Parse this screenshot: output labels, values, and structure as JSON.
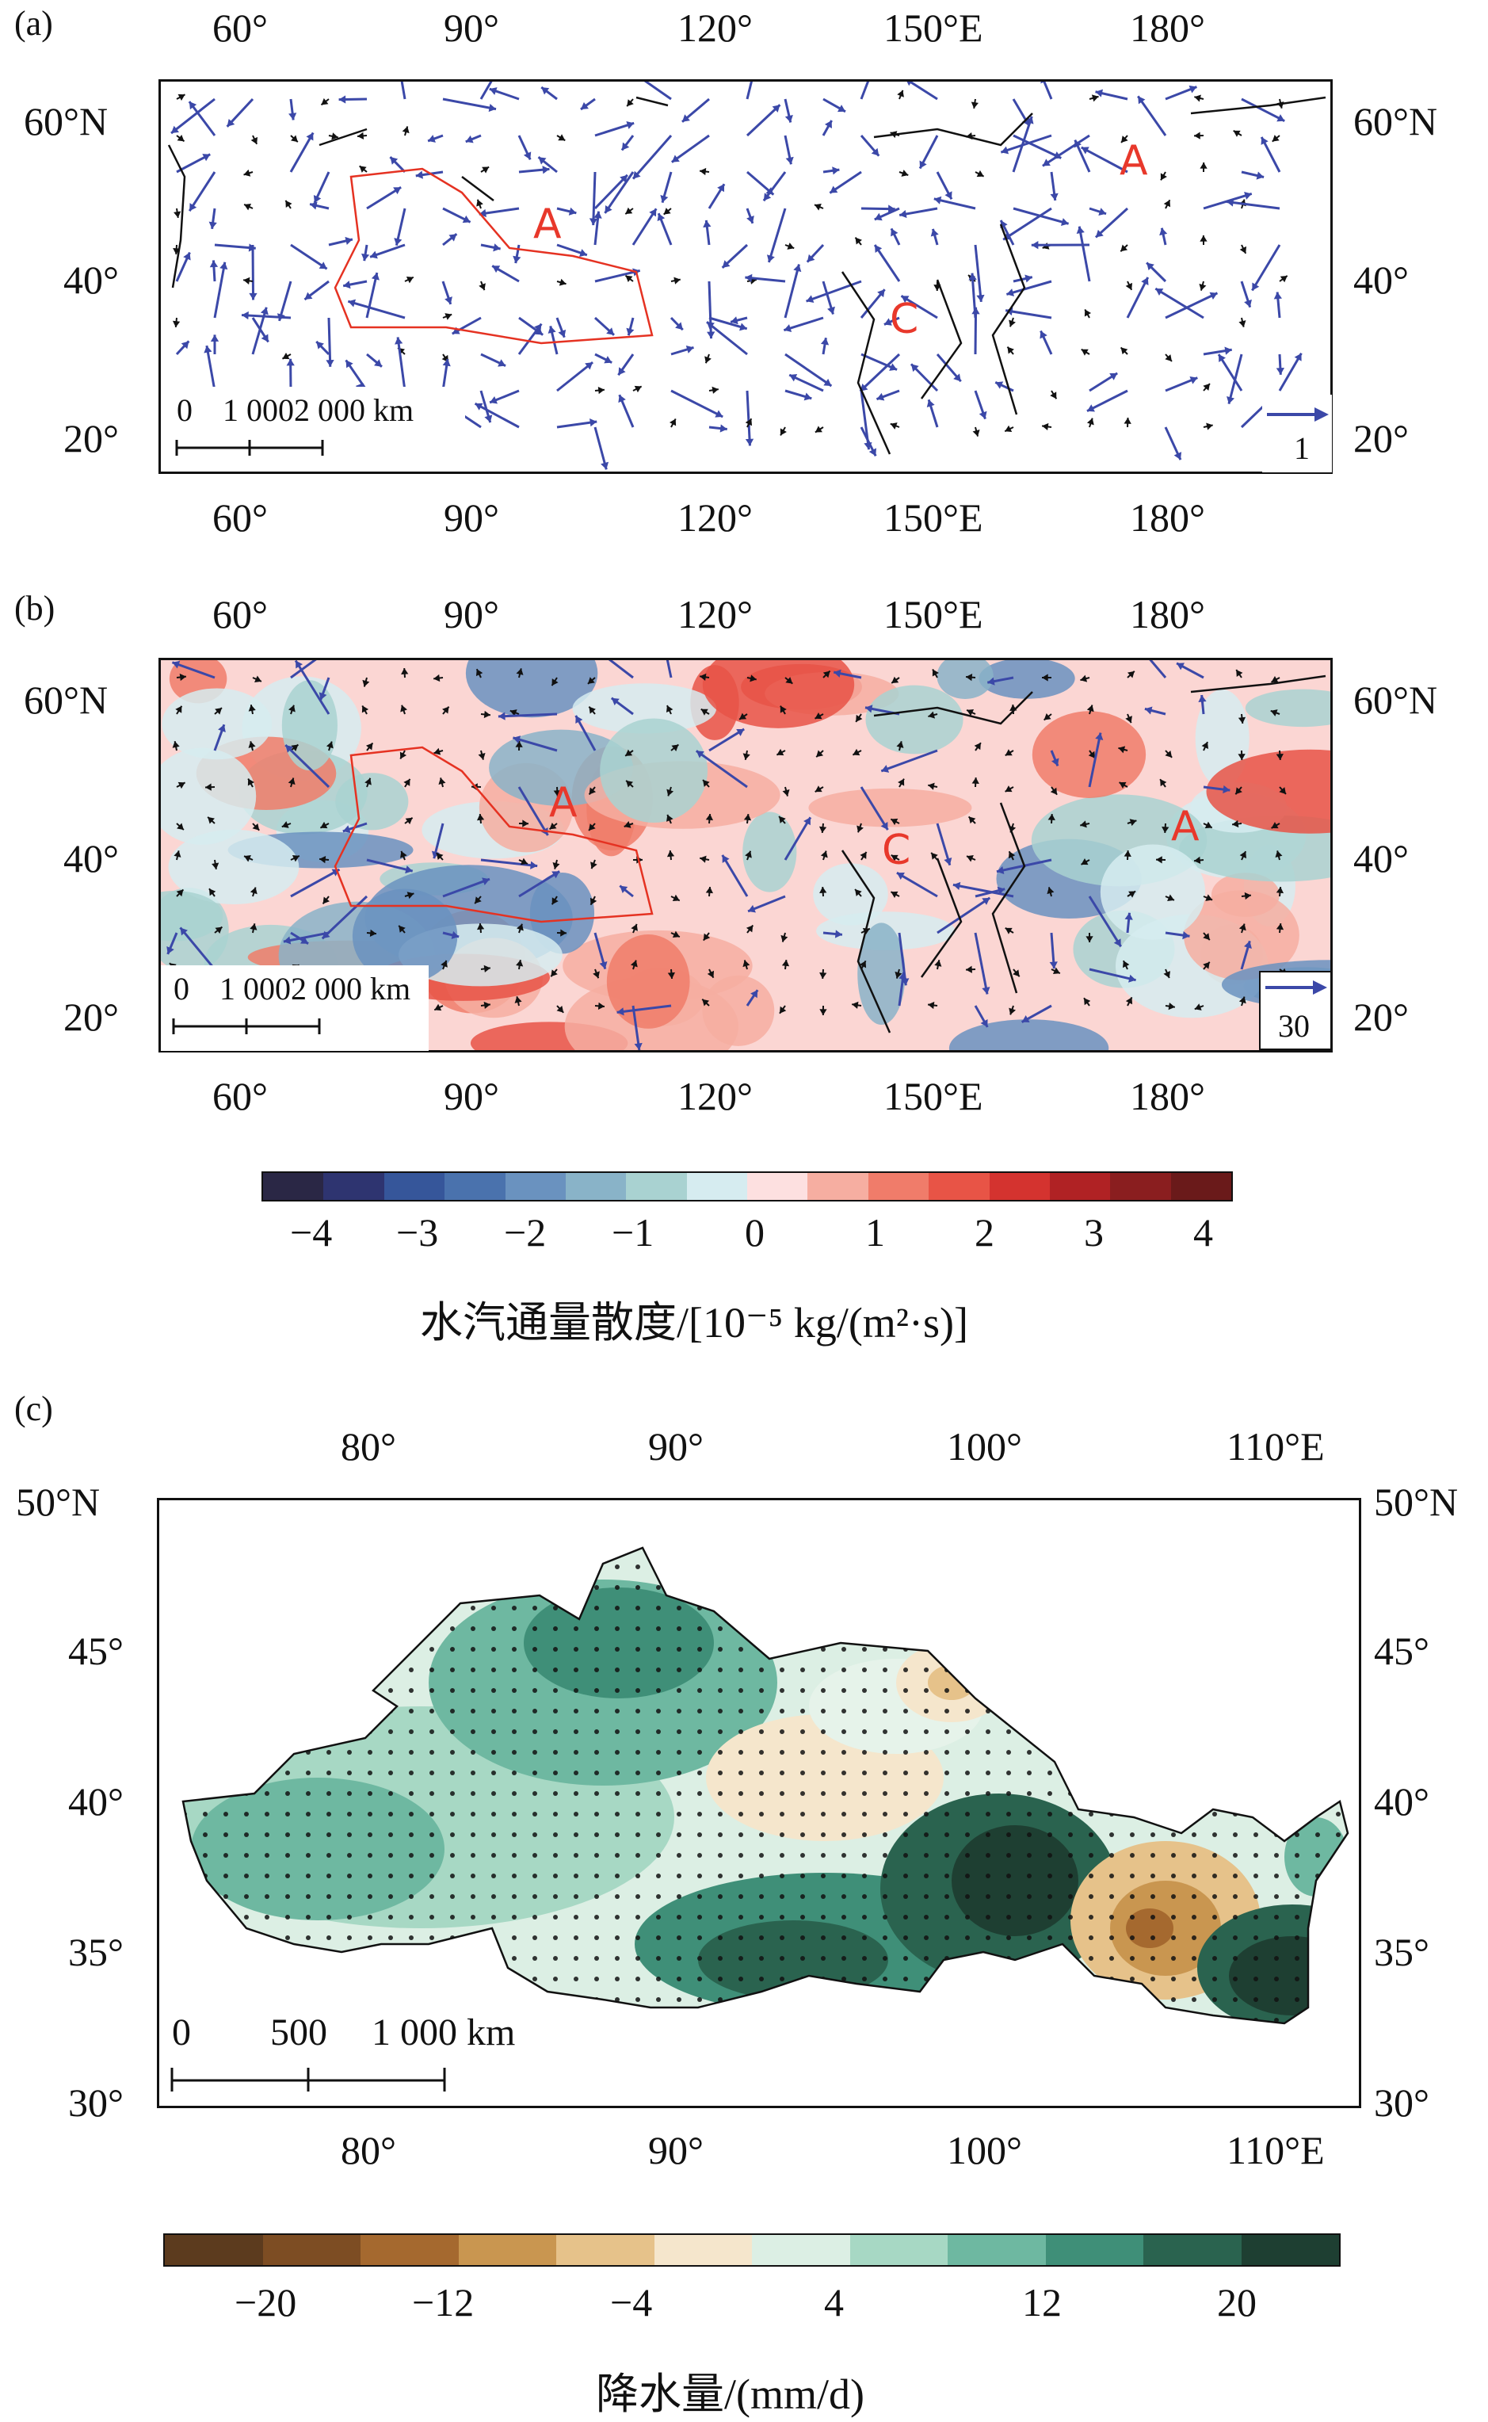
{
  "panels": {
    "a": {
      "label": "(a)",
      "top_ticks": [
        "60°",
        "90°",
        "120°",
        "150°E",
        "180°"
      ],
      "bottom_ticks": [
        "60°",
        "90°",
        "120°",
        "150°E",
        "180°"
      ],
      "left_ticks": [
        "60°N",
        "40°",
        "20°"
      ],
      "right_ticks": [
        "60°N",
        "40°",
        "20°"
      ],
      "letters": [
        "A",
        "C",
        "A"
      ],
      "scale_labels": [
        "0",
        "1 000",
        "2 000 km"
      ],
      "ref_vector_label": "1"
    },
    "b": {
      "label": "(b)",
      "top_ticks": [
        "60°",
        "90°",
        "120°",
        "150°E",
        "180°"
      ],
      "bottom_ticks": [
        "60°",
        "90°",
        "120°",
        "150°E",
        "180°"
      ],
      "left_ticks": [
        "60°N",
        "40°",
        "20°"
      ],
      "right_ticks": [
        "60°N",
        "40°",
        "20°"
      ],
      "letters": [
        "A",
        "C",
        "A"
      ],
      "scale_labels": [
        "0",
        "1 000",
        "2 000 km"
      ],
      "ref_vector_label": "30"
    },
    "c": {
      "label": "(c)",
      "top_ticks": [
        "80°",
        "90°",
        "100°",
        "110°E"
      ],
      "bottom_ticks": [
        "80°",
        "90°",
        "100°",
        "110°E"
      ],
      "left_ticks": [
        "50°N",
        "45°",
        "40°",
        "35°",
        "30°"
      ],
      "right_ticks": [
        "50°N",
        "45°",
        "40°",
        "35°",
        "30°"
      ],
      "scale_labels": [
        "0",
        "500",
        "1 000 km"
      ]
    }
  },
  "colorbar_divergence": {
    "title": "水汽通量散度/[10⁻⁵ kg/(m²·s)]",
    "tick_labels": [
      "−4",
      "−3",
      "−2",
      "−1",
      "0",
      "1",
      "2",
      "3",
      "4"
    ],
    "colors": [
      "#2a2745",
      "#2e3470",
      "#36569a",
      "#4a72ad",
      "#6a92bf",
      "#89b3c8",
      "#a9d2d1",
      "#d6ecf0",
      "#fde0e0",
      "#f6aea1",
      "#f07c6a",
      "#e85446",
      "#d4332f",
      "#b02224",
      "#8a1e1f",
      "#6a1a1a"
    ]
  },
  "colorbar_precip": {
    "title": "降水量/(mm/d)",
    "tick_labels": [
      "−20",
      "−12",
      "−4",
      "4",
      "12",
      "20"
    ],
    "colors": [
      "#5c3b1e",
      "#7d4d23",
      "#a5692f",
      "#c99650",
      "#e6c28a",
      "#f5e6cc",
      "#dcefe4",
      "#a7d8c4",
      "#6eb8a1",
      "#3f8f78",
      "#2a634f",
      "#1e3f32"
    ]
  }
}
